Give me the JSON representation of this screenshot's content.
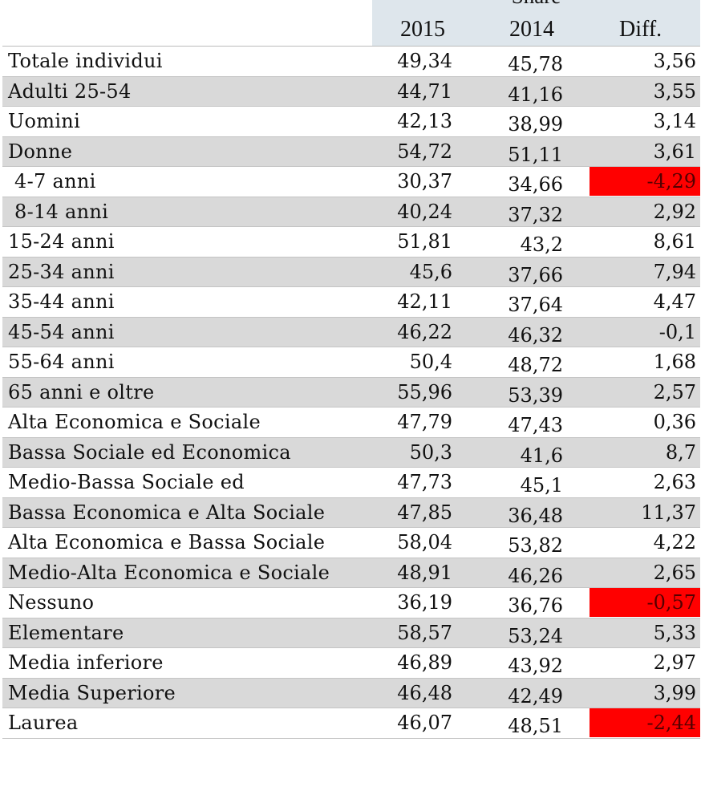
{
  "chart_data": {
    "type": "table",
    "header_title": "Share",
    "columns": [
      "2015",
      "2014",
      "Diff."
    ],
    "highlight_color": "#ff0000",
    "rows": [
      {
        "label": "Totale individui",
        "v2015": "49,34",
        "v2014": "45,78",
        "diff": "3,56"
      },
      {
        "label": "Adulti 25-54",
        "v2015": "44,71",
        "v2014": "41,16",
        "diff": "3,55"
      },
      {
        "label": "Uomini",
        "v2015": "42,13",
        "v2014": "38,99",
        "diff": "3,14"
      },
      {
        "label": "Donne",
        "v2015": "54,72",
        "v2014": "51,11",
        "diff": "3,61"
      },
      {
        "label": "4-7 anni",
        "v2015": "30,37",
        "v2014": "34,66",
        "diff": "-4,29"
      },
      {
        "label": "8-14 anni",
        "v2015": "40,24",
        "v2014": "37,32",
        "diff": "2,92"
      },
      {
        "label": "15-24 anni",
        "v2015": "51,81",
        "v2014": "43,2",
        "diff": "8,61"
      },
      {
        "label": "25-34 anni",
        "v2015": "45,6",
        "v2014": "37,66",
        "diff": "7,94"
      },
      {
        "label": "35-44 anni",
        "v2015": "42,11",
        "v2014": "37,64",
        "diff": "4,47"
      },
      {
        "label": "45-54 anni",
        "v2015": "46,22",
        "v2014": "46,32",
        "diff": "-0,1"
      },
      {
        "label": "55-64 anni",
        "v2015": "50,4",
        "v2014": "48,72",
        "diff": "1,68"
      },
      {
        "label": "65 anni e oltre",
        "v2015": "55,96",
        "v2014": "53,39",
        "diff": "2,57"
      },
      {
        "label": "Alta Economica e Sociale",
        "v2015": "47,79",
        "v2014": "47,43",
        "diff": "0,36"
      },
      {
        "label": "Bassa Sociale ed Economica",
        "v2015": "50,3",
        "v2014": "41,6",
        "diff": "8,7"
      },
      {
        "label": "Medio-Bassa Sociale ed",
        "v2015": "47,73",
        "v2014": "45,1",
        "diff": "2,63"
      },
      {
        "label": "Bassa Economica e Alta Sociale",
        "v2015": "47,85",
        "v2014": "36,48",
        "diff": "11,37"
      },
      {
        "label": "Alta Economica e Bassa Sociale",
        "v2015": "58,04",
        "v2014": "53,82",
        "diff": "4,22"
      },
      {
        "label": "Medio-Alta Economica e Sociale",
        "v2015": "48,91",
        "v2014": "46,26",
        "diff": "2,65"
      },
      {
        "label": "Nessuno",
        "v2015": "36,19",
        "v2014": "36,76",
        "diff": "-0,57"
      },
      {
        "label": "Elementare",
        "v2015": "58,57",
        "v2014": "53,24",
        "diff": "5,33"
      },
      {
        "label": "Media inferiore",
        "v2015": "46,89",
        "v2014": "43,92",
        "diff": "2,97"
      },
      {
        "label": "Media Superiore",
        "v2015": "46,48",
        "v2014": "42,49",
        "diff": "3,99"
      },
      {
        "label": "Laurea",
        "v2015": "46,07",
        "v2014": "48,51",
        "diff": "-2,44"
      }
    ],
    "highlighted_rows": [
      "4-7 anni",
      "Nessuno",
      "Laurea"
    ]
  }
}
